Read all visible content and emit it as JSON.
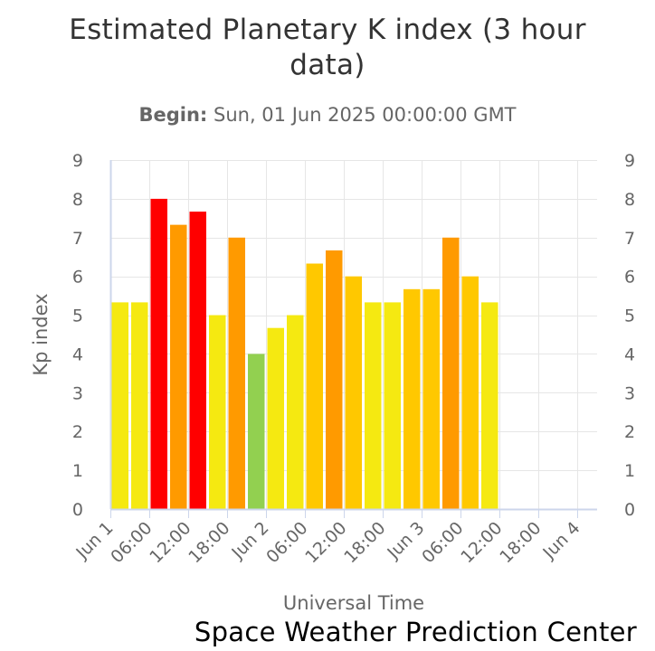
{
  "chart_data": {
    "type": "bar",
    "title": "Estimated Planetary K index (3 hour data)",
    "subtitle_label": "Begin:",
    "subtitle_value": "Sun, 01 Jun 2025 00:00:00 GMT",
    "xlabel": "Universal Time",
    "ylabel": "Kp index",
    "ylim": [
      0,
      9
    ],
    "yticks": [
      0,
      1,
      2,
      3,
      4,
      5,
      6,
      7,
      8,
      9
    ],
    "x_start": "2025-06-01T00:00:00Z",
    "x_end": "2025-06-04T00:00:00Z",
    "x_ticks": [
      {
        "t": "2025-06-01T00:00:00Z",
        "label": "Jun 1"
      },
      {
        "t": "2025-06-01T06:00:00Z",
        "label": "06:00"
      },
      {
        "t": "2025-06-01T12:00:00Z",
        "label": "12:00"
      },
      {
        "t": "2025-06-01T18:00:00Z",
        "label": "18:00"
      },
      {
        "t": "2025-06-02T00:00:00Z",
        "label": "Jun 2"
      },
      {
        "t": "2025-06-02T06:00:00Z",
        "label": "06:00"
      },
      {
        "t": "2025-06-02T12:00:00Z",
        "label": "12:00"
      },
      {
        "t": "2025-06-02T18:00:00Z",
        "label": "18:00"
      },
      {
        "t": "2025-06-03T00:00:00Z",
        "label": "Jun 3"
      },
      {
        "t": "2025-06-03T06:00:00Z",
        "label": "06:00"
      },
      {
        "t": "2025-06-03T12:00:00Z",
        "label": "12:00"
      },
      {
        "t": "2025-06-03T18:00:00Z",
        "label": "18:00"
      },
      {
        "t": "2025-06-04T00:00:00Z",
        "label": "Jun 4"
      }
    ],
    "bars": [
      {
        "t": "2025-06-01T00:00:00Z",
        "value": 5.33,
        "color": "#f5e911"
      },
      {
        "t": "2025-06-01T03:00:00Z",
        "value": 5.33,
        "color": "#f5e911"
      },
      {
        "t": "2025-06-01T06:00:00Z",
        "value": 8.0,
        "color": "#ff0000"
      },
      {
        "t": "2025-06-01T09:00:00Z",
        "value": 7.33,
        "color": "#ff9a00"
      },
      {
        "t": "2025-06-01T12:00:00Z",
        "value": 7.67,
        "color": "#ff0000"
      },
      {
        "t": "2025-06-01T15:00:00Z",
        "value": 5.0,
        "color": "#f5e911"
      },
      {
        "t": "2025-06-01T18:00:00Z",
        "value": 7.0,
        "color": "#ff9a00"
      },
      {
        "t": "2025-06-01T21:00:00Z",
        "value": 4.0,
        "color": "#92d050"
      },
      {
        "t": "2025-06-02T00:00:00Z",
        "value": 4.67,
        "color": "#f5e911"
      },
      {
        "t": "2025-06-02T03:00:00Z",
        "value": 5.0,
        "color": "#f5e911"
      },
      {
        "t": "2025-06-02T06:00:00Z",
        "value": 6.33,
        "color": "#ffc800"
      },
      {
        "t": "2025-06-02T09:00:00Z",
        "value": 6.67,
        "color": "#ff9a00"
      },
      {
        "t": "2025-06-02T12:00:00Z",
        "value": 6.0,
        "color": "#ffc800"
      },
      {
        "t": "2025-06-02T15:00:00Z",
        "value": 5.33,
        "color": "#f5e911"
      },
      {
        "t": "2025-06-02T18:00:00Z",
        "value": 5.33,
        "color": "#f5e911"
      },
      {
        "t": "2025-06-02T21:00:00Z",
        "value": 5.67,
        "color": "#ffc800"
      },
      {
        "t": "2025-06-03T00:00:00Z",
        "value": 5.67,
        "color": "#ffc800"
      },
      {
        "t": "2025-06-03T03:00:00Z",
        "value": 7.0,
        "color": "#ff9a00"
      },
      {
        "t": "2025-06-03T06:00:00Z",
        "value": 6.0,
        "color": "#ffc800"
      },
      {
        "t": "2025-06-03T09:00:00Z",
        "value": 5.33,
        "color": "#f5e911"
      }
    ],
    "grid": true,
    "legend": "none"
  },
  "credit": "Space Weather Prediction Center"
}
